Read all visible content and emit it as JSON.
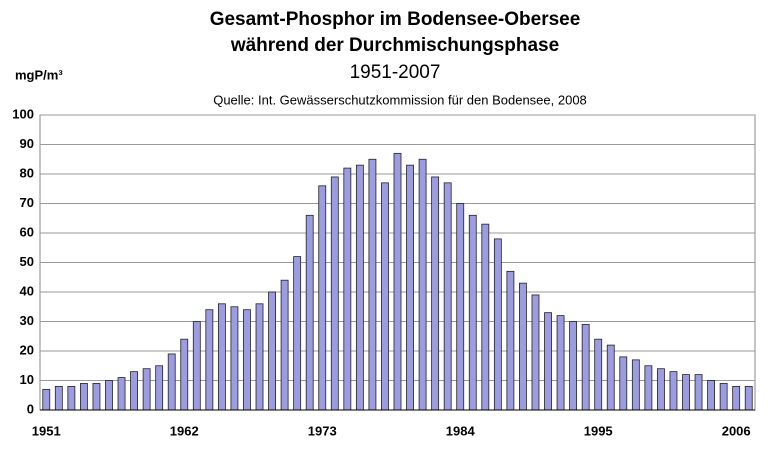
{
  "chart_data": {
    "type": "bar",
    "title": "Gesamt-Phosphor im Bodensee-Obersee",
    "subtitle": "während der Durchmischungsphase",
    "period": "1951-2007",
    "source": "Quelle: Int. Gewässerschutzkommission für den Bodensee, 2008",
    "y_label": "mgP/m³",
    "categories": [
      "1951",
      null,
      null,
      null,
      null,
      null,
      null,
      null,
      null,
      null,
      null,
      "1962",
      null,
      null,
      null,
      null,
      null,
      null,
      null,
      null,
      null,
      null,
      "1973",
      null,
      null,
      null,
      null,
      null,
      null,
      null,
      null,
      null,
      null,
      "1984",
      null,
      null,
      null,
      null,
      null,
      null,
      null,
      null,
      null,
      null,
      "1995",
      null,
      null,
      null,
      null,
      null,
      null,
      null,
      null,
      null,
      null,
      "2006",
      null
    ],
    "values": [
      7,
      8,
      8,
      9,
      9,
      10,
      11,
      13,
      14,
      15,
      19,
      24,
      30,
      34,
      36,
      35,
      34,
      36,
      40,
      44,
      52,
      66,
      76,
      79,
      82,
      83,
      85,
      77,
      87,
      83,
      85,
      79,
      77,
      70,
      66,
      63,
      58,
      47,
      43,
      39,
      33,
      32,
      30,
      29,
      24,
      22,
      18,
      17,
      15,
      14,
      13,
      12,
      12,
      10,
      9,
      8,
      8
    ],
    "color": "#9c9ce0",
    "ylim": [
      0,
      100
    ],
    "yticks": [
      0,
      10,
      20,
      30,
      40,
      50,
      60,
      70,
      80,
      90,
      100
    ],
    "grid": true
  }
}
